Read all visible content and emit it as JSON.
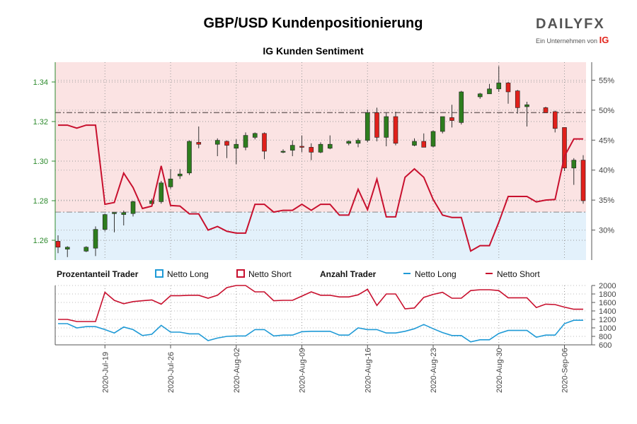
{
  "header": {
    "title": "GBP/USD Kundenpositionierung",
    "subtitle": "IG Kunden Sentiment",
    "logo_text": "DAILYFX",
    "logo_sub": "Ein Unternehmen von",
    "logo_brand": "IG"
  },
  "legend": {
    "pct_title": "Prozentanteil Trader",
    "pct_long": "Netto Long",
    "pct_short": "Netto Short",
    "count_title": "Anzahl Trader",
    "count_long": "Netto Long",
    "count_short": "Netto Short"
  },
  "colors": {
    "long": "#1f9ad6",
    "short": "#c8102e",
    "bull_candle": "#2e7d1e",
    "bear_candle": "#e0201b",
    "short_zone": "#fbe3e3",
    "long_zone": "#e3f1fb"
  },
  "chart_data": [
    {
      "type": "candlestick",
      "title": "IG Kunden Sentiment",
      "left_axis": {
        "ylim": [
          1.25,
          1.35
        ],
        "ticks": [
          "1.26",
          "1.28",
          "1.30",
          "1.32",
          "1.34"
        ]
      },
      "right_axis": {
        "ylim": [
          0.25,
          0.58
        ],
        "ticks": [
          "30%",
          "35%",
          "40%",
          "45%",
          "50%",
          "55%"
        ]
      },
      "reference_lines": {
        "price": 1.3245,
        "long_pct": 0.33
      },
      "x_ticks": [
        "2020-Jul-19",
        "2020-Jul-26",
        "2020-Aug-02",
        "2020-Aug-09",
        "2020-Aug-16",
        "2020-Aug-23",
        "2020-Aug-30",
        "2020-Sep-06"
      ],
      "candles": [
        {
          "i": 0,
          "o": 1.2595,
          "h": 1.2625,
          "l": 1.2535,
          "c": 1.2565
        },
        {
          "i": 1,
          "o": 1.2555,
          "h": 1.257,
          "l": 1.2515,
          "c": 1.2565
        },
        {
          "i": 3,
          "o": 1.2545,
          "h": 1.257,
          "l": 1.254,
          "c": 1.2565
        },
        {
          "i": 4,
          "o": 1.256,
          "h": 1.267,
          "l": 1.252,
          "c": 1.2655
        },
        {
          "i": 5,
          "o": 1.2655,
          "h": 1.2735,
          "l": 1.2645,
          "c": 1.273
        },
        {
          "i": 6,
          "o": 1.2735,
          "h": 1.274,
          "l": 1.264,
          "c": 1.274
        },
        {
          "i": 7,
          "o": 1.273,
          "h": 1.275,
          "l": 1.2675,
          "c": 1.274
        },
        {
          "i": 8,
          "o": 1.2735,
          "h": 1.28,
          "l": 1.272,
          "c": 1.2795
        },
        {
          "i": 10,
          "o": 1.2785,
          "h": 1.281,
          "l": 1.278,
          "c": 1.28
        },
        {
          "i": 11,
          "o": 1.2795,
          "h": 1.29,
          "l": 1.2785,
          "c": 1.289
        },
        {
          "i": 12,
          "o": 1.287,
          "h": 1.296,
          "l": 1.286,
          "c": 1.291
        },
        {
          "i": 13,
          "o": 1.2925,
          "h": 1.296,
          "l": 1.291,
          "c": 1.2935
        },
        {
          "i": 14,
          "o": 1.294,
          "h": 1.3105,
          "l": 1.293,
          "c": 1.31
        },
        {
          "i": 15,
          "o": 1.3095,
          "h": 1.3175,
          "l": 1.3065,
          "c": 1.3085
        },
        {
          "i": 17,
          "o": 1.3085,
          "h": 1.3115,
          "l": 1.3025,
          "c": 1.3105
        },
        {
          "i": 18,
          "o": 1.31,
          "h": 1.3105,
          "l": 1.3015,
          "c": 1.308
        },
        {
          "i": 19,
          "o": 1.3065,
          "h": 1.311,
          "l": 1.2985,
          "c": 1.3085
        },
        {
          "i": 20,
          "o": 1.307,
          "h": 1.3145,
          "l": 1.3055,
          "c": 1.313
        },
        {
          "i": 21,
          "o": 1.312,
          "h": 1.3145,
          "l": 1.311,
          "c": 1.314
        },
        {
          "i": 22,
          "o": 1.314,
          "h": 1.3145,
          "l": 1.301,
          "c": 1.305
        },
        {
          "i": 24,
          "o": 1.3045,
          "h": 1.306,
          "l": 1.304,
          "c": 1.305
        },
        {
          "i": 25,
          "o": 1.3055,
          "h": 1.3105,
          "l": 1.3025,
          "c": 1.308
        },
        {
          "i": 26,
          "o": 1.3075,
          "h": 1.313,
          "l": 1.3045,
          "c": 1.307
        },
        {
          "i": 27,
          "o": 1.307,
          "h": 1.309,
          "l": 1.3005,
          "c": 1.3045
        },
        {
          "i": 28,
          "o": 1.3045,
          "h": 1.3095,
          "l": 1.304,
          "c": 1.3085
        },
        {
          "i": 29,
          "o": 1.3065,
          "h": 1.313,
          "l": 1.306,
          "c": 1.3085
        },
        {
          "i": 31,
          "o": 1.309,
          "h": 1.3105,
          "l": 1.308,
          "c": 1.31
        },
        {
          "i": 32,
          "o": 1.309,
          "h": 1.3115,
          "l": 1.307,
          "c": 1.3105
        },
        {
          "i": 33,
          "o": 1.3105,
          "h": 1.326,
          "l": 1.3095,
          "c": 1.3245
        },
        {
          "i": 34,
          "o": 1.3245,
          "h": 1.327,
          "l": 1.31,
          "c": 1.312
        },
        {
          "i": 35,
          "o": 1.312,
          "h": 1.3245,
          "l": 1.3075,
          "c": 1.3225
        },
        {
          "i": 36,
          "o": 1.3225,
          "h": 1.325,
          "l": 1.308,
          "c": 1.309
        },
        {
          "i": 38,
          "o": 1.308,
          "h": 1.3115,
          "l": 1.3075,
          "c": 1.31
        },
        {
          "i": 39,
          "o": 1.31,
          "h": 1.314,
          "l": 1.307,
          "c": 1.307
        },
        {
          "i": 40,
          "o": 1.3075,
          "h": 1.3155,
          "l": 1.307,
          "c": 1.315
        },
        {
          "i": 41,
          "o": 1.315,
          "h": 1.3225,
          "l": 1.314,
          "c": 1.3225
        },
        {
          "i": 42,
          "o": 1.322,
          "h": 1.3285,
          "l": 1.317,
          "c": 1.3205
        },
        {
          "i": 43,
          "o": 1.3195,
          "h": 1.3355,
          "l": 1.3185,
          "c": 1.335
        },
        {
          "i": 45,
          "o": 1.3325,
          "h": 1.3345,
          "l": 1.3315,
          "c": 1.334
        },
        {
          "i": 46,
          "o": 1.334,
          "h": 1.339,
          "l": 1.334,
          "c": 1.3365
        },
        {
          "i": 47,
          "o": 1.3365,
          "h": 1.348,
          "l": 1.335,
          "c": 1.3395
        },
        {
          "i": 48,
          "o": 1.3395,
          "h": 1.34,
          "l": 1.329,
          "c": 1.335
        },
        {
          "i": 49,
          "o": 1.3355,
          "h": 1.336,
          "l": 1.324,
          "c": 1.327
        },
        {
          "i": 50,
          "o": 1.3275,
          "h": 1.33,
          "l": 1.3175,
          "c": 1.3285
        },
        {
          "i": 52,
          "o": 1.327,
          "h": 1.3275,
          "l": 1.325,
          "c": 1.3245
        },
        {
          "i": 53,
          "o": 1.325,
          "h": 1.3255,
          "l": 1.3145,
          "c": 1.3165
        },
        {
          "i": 54,
          "o": 1.317,
          "h": 1.317,
          "l": 1.295,
          "c": 1.2965
        },
        {
          "i": 55,
          "o": 1.2965,
          "h": 1.3015,
          "l": 1.288,
          "c": 1.3005
        },
        {
          "i": 56,
          "o": 1.3005,
          "h": 1.303,
          "l": 1.2785,
          "c": 1.28
        }
      ],
      "long_pct": [
        {
          "i": 0,
          "v": 0.475
        },
        {
          "i": 1,
          "v": 0.475
        },
        {
          "i": 2,
          "v": 0.47
        },
        {
          "i": 3,
          "v": 0.475
        },
        {
          "i": 4,
          "v": 0.475
        },
        {
          "i": 5,
          "v": 0.343
        },
        {
          "i": 6,
          "v": 0.346
        },
        {
          "i": 7,
          "v": 0.395
        },
        {
          "i": 8,
          "v": 0.371
        },
        {
          "i": 9,
          "v": 0.336
        },
        {
          "i": 10,
          "v": 0.34
        },
        {
          "i": 11,
          "v": 0.407
        },
        {
          "i": 12,
          "v": 0.341
        },
        {
          "i": 13,
          "v": 0.34
        },
        {
          "i": 14,
          "v": 0.327
        },
        {
          "i": 15,
          "v": 0.327
        },
        {
          "i": 16,
          "v": 0.3
        },
        {
          "i": 17,
          "v": 0.306
        },
        {
          "i": 18,
          "v": 0.298
        },
        {
          "i": 19,
          "v": 0.295
        },
        {
          "i": 20,
          "v": 0.295
        },
        {
          "i": 21,
          "v": 0.343
        },
        {
          "i": 22,
          "v": 0.343
        },
        {
          "i": 23,
          "v": 0.33
        },
        {
          "i": 24,
          "v": 0.333
        },
        {
          "i": 25,
          "v": 0.333
        },
        {
          "i": 26,
          "v": 0.343
        },
        {
          "i": 27,
          "v": 0.333
        },
        {
          "i": 28,
          "v": 0.343
        },
        {
          "i": 29,
          "v": 0.343
        },
        {
          "i": 30,
          "v": 0.325
        },
        {
          "i": 31,
          "v": 0.325
        },
        {
          "i": 32,
          "v": 0.368
        },
        {
          "i": 33,
          "v": 0.334
        },
        {
          "i": 34,
          "v": 0.385
        },
        {
          "i": 35,
          "v": 0.322
        },
        {
          "i": 36,
          "v": 0.322
        },
        {
          "i": 37,
          "v": 0.388
        },
        {
          "i": 38,
          "v": 0.402
        },
        {
          "i": 39,
          "v": 0.388
        },
        {
          "i": 40,
          "v": 0.351
        },
        {
          "i": 41,
          "v": 0.325
        },
        {
          "i": 42,
          "v": 0.321
        },
        {
          "i": 43,
          "v": 0.321
        },
        {
          "i": 44,
          "v": 0.265
        },
        {
          "i": 45,
          "v": 0.274
        },
        {
          "i": 46,
          "v": 0.274
        },
        {
          "i": 47,
          "v": 0.313
        },
        {
          "i": 48,
          "v": 0.356
        },
        {
          "i": 49,
          "v": 0.356
        },
        {
          "i": 50,
          "v": 0.356
        },
        {
          "i": 51,
          "v": 0.347
        },
        {
          "i": 52,
          "v": 0.35
        },
        {
          "i": 53,
          "v": 0.351
        },
        {
          "i": 54,
          "v": 0.423
        },
        {
          "i": 55,
          "v": 0.452
        },
        {
          "i": 56,
          "v": 0.452
        }
      ],
      "bottom_axis": {
        "ylim": [
          600,
          2000
        ],
        "ticks": [
          "600",
          "800",
          "1000",
          "1200",
          "1400",
          "1600",
          "1800",
          "2000"
        ]
      },
      "count_long": [
        {
          "i": 0,
          "v": 1100
        },
        {
          "i": 1,
          "v": 1100
        },
        {
          "i": 2,
          "v": 1000
        },
        {
          "i": 3,
          "v": 1030
        },
        {
          "i": 4,
          "v": 1030
        },
        {
          "i": 5,
          "v": 960
        },
        {
          "i": 6,
          "v": 880
        },
        {
          "i": 7,
          "v": 1020
        },
        {
          "i": 8,
          "v": 960
        },
        {
          "i": 9,
          "v": 820
        },
        {
          "i": 10,
          "v": 850
        },
        {
          "i": 11,
          "v": 1060
        },
        {
          "i": 12,
          "v": 900
        },
        {
          "i": 13,
          "v": 900
        },
        {
          "i": 14,
          "v": 860
        },
        {
          "i": 15,
          "v": 860
        },
        {
          "i": 16,
          "v": 700
        },
        {
          "i": 17,
          "v": 760
        },
        {
          "i": 18,
          "v": 800
        },
        {
          "i": 19,
          "v": 810
        },
        {
          "i": 20,
          "v": 810
        },
        {
          "i": 21,
          "v": 960
        },
        {
          "i": 22,
          "v": 960
        },
        {
          "i": 23,
          "v": 810
        },
        {
          "i": 24,
          "v": 830
        },
        {
          "i": 25,
          "v": 830
        },
        {
          "i": 26,
          "v": 910
        },
        {
          "i": 27,
          "v": 920
        },
        {
          "i": 28,
          "v": 920
        },
        {
          "i": 29,
          "v": 920
        },
        {
          "i": 30,
          "v": 830
        },
        {
          "i": 31,
          "v": 830
        },
        {
          "i": 32,
          "v": 1000
        },
        {
          "i": 33,
          "v": 960
        },
        {
          "i": 34,
          "v": 960
        },
        {
          "i": 35,
          "v": 880
        },
        {
          "i": 36,
          "v": 880
        },
        {
          "i": 37,
          "v": 920
        },
        {
          "i": 38,
          "v": 980
        },
        {
          "i": 39,
          "v": 1080
        },
        {
          "i": 40,
          "v": 980
        },
        {
          "i": 41,
          "v": 890
        },
        {
          "i": 42,
          "v": 820
        },
        {
          "i": 43,
          "v": 820
        },
        {
          "i": 44,
          "v": 670
        },
        {
          "i": 45,
          "v": 720
        },
        {
          "i": 46,
          "v": 720
        },
        {
          "i": 47,
          "v": 870
        },
        {
          "i": 48,
          "v": 940
        },
        {
          "i": 49,
          "v": 940
        },
        {
          "i": 50,
          "v": 940
        },
        {
          "i": 51,
          "v": 780
        },
        {
          "i": 52,
          "v": 830
        },
        {
          "i": 53,
          "v": 830
        },
        {
          "i": 54,
          "v": 1100
        },
        {
          "i": 55,
          "v": 1180
        },
        {
          "i": 56,
          "v": 1180
        }
      ],
      "count_short": [
        {
          "i": 0,
          "v": 1200
        },
        {
          "i": 1,
          "v": 1200
        },
        {
          "i": 2,
          "v": 1150
        },
        {
          "i": 3,
          "v": 1150
        },
        {
          "i": 4,
          "v": 1150
        },
        {
          "i": 5,
          "v": 1840
        },
        {
          "i": 6,
          "v": 1650
        },
        {
          "i": 7,
          "v": 1570
        },
        {
          "i": 8,
          "v": 1620
        },
        {
          "i": 9,
          "v": 1640
        },
        {
          "i": 10,
          "v": 1660
        },
        {
          "i": 11,
          "v": 1560
        },
        {
          "i": 12,
          "v": 1760
        },
        {
          "i": 13,
          "v": 1760
        },
        {
          "i": 14,
          "v": 1770
        },
        {
          "i": 15,
          "v": 1770
        },
        {
          "i": 16,
          "v": 1700
        },
        {
          "i": 17,
          "v": 1770
        },
        {
          "i": 18,
          "v": 1950
        },
        {
          "i": 19,
          "v": 2000
        },
        {
          "i": 20,
          "v": 2000
        },
        {
          "i": 21,
          "v": 1850
        },
        {
          "i": 22,
          "v": 1850
        },
        {
          "i": 23,
          "v": 1640
        },
        {
          "i": 24,
          "v": 1650
        },
        {
          "i": 25,
          "v": 1650
        },
        {
          "i": 26,
          "v": 1750
        },
        {
          "i": 27,
          "v": 1850
        },
        {
          "i": 28,
          "v": 1770
        },
        {
          "i": 29,
          "v": 1770
        },
        {
          "i": 30,
          "v": 1730
        },
        {
          "i": 31,
          "v": 1730
        },
        {
          "i": 32,
          "v": 1780
        },
        {
          "i": 33,
          "v": 1910
        },
        {
          "i": 34,
          "v": 1530
        },
        {
          "i": 35,
          "v": 1800
        },
        {
          "i": 36,
          "v": 1800
        },
        {
          "i": 37,
          "v": 1450
        },
        {
          "i": 38,
          "v": 1470
        },
        {
          "i": 39,
          "v": 1720
        },
        {
          "i": 40,
          "v": 1790
        },
        {
          "i": 41,
          "v": 1840
        },
        {
          "i": 42,
          "v": 1700
        },
        {
          "i": 43,
          "v": 1700
        },
        {
          "i": 44,
          "v": 1880
        },
        {
          "i": 45,
          "v": 1900
        },
        {
          "i": 46,
          "v": 1900
        },
        {
          "i": 47,
          "v": 1880
        },
        {
          "i": 48,
          "v": 1710
        },
        {
          "i": 49,
          "v": 1710
        },
        {
          "i": 50,
          "v": 1710
        },
        {
          "i": 51,
          "v": 1480
        },
        {
          "i": 52,
          "v": 1560
        },
        {
          "i": 53,
          "v": 1550
        },
        {
          "i": 54,
          "v": 1490
        },
        {
          "i": 55,
          "v": 1440
        },
        {
          "i": 56,
          "v": 1440
        }
      ]
    }
  ]
}
